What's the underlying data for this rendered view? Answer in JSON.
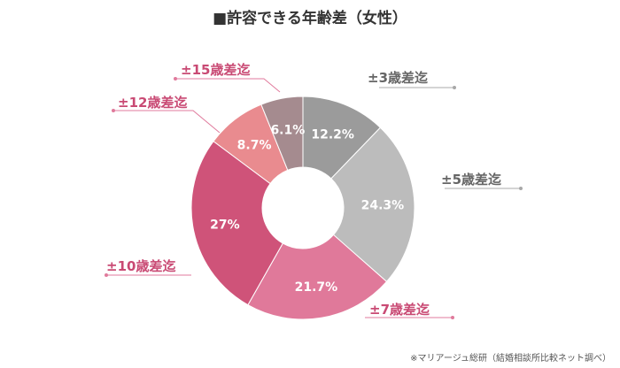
{
  "title": "■許容できる年齢差（女性）",
  "source": "※マリアージュ総研（結婚相談所比較ネット調べ）",
  "colors": {
    "text_dark": "#333333",
    "label_pink": "#c94a74",
    "label_gray": "#666666",
    "leader_pink": "#e07a9c",
    "leader_gray": "#a8a8a8"
  },
  "chart_data": {
    "type": "pie",
    "variant": "donut",
    "categories": [
      "±3歳差迄",
      "±5歳差迄",
      "±7歳差迄",
      "±10歳差迄",
      "±12歳差迄",
      "±15歳差迄"
    ],
    "values": [
      12.2,
      24.3,
      21.7,
      27,
      8.7,
      6.1
    ],
    "value_labels": [
      "12.2%",
      "24.3%",
      "21.7%",
      "27%",
      "8.7%",
      "6.1%"
    ],
    "colors": [
      "#9b9b9b",
      "#bcbcbc",
      "#e0799a",
      "#cf5379",
      "#e98b8f",
      "#a58b8f"
    ]
  }
}
